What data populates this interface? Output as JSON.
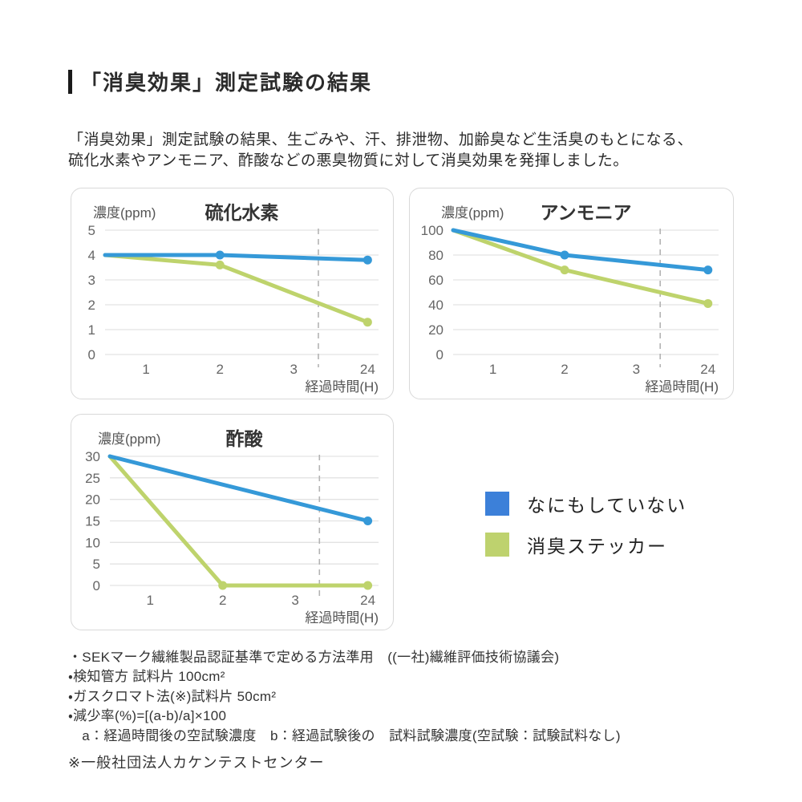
{
  "header": {
    "title": "「消臭効果」測定試験の結果",
    "description_line1": "「消臭効果」測定試験の結果、生ごみや、汗、排泄物、加齢臭など生活臭のもとになる、",
    "description_line2": "硫化水素やアンモニア、酢酸などの悪臭物質に対して消臭効果を発揮しました。"
  },
  "colors": {
    "line_blue": "#3599d8",
    "line_green": "#bed36c",
    "legend_blue": "#3c80d9",
    "legend_green": "#bed26e",
    "grid": "#e3e3e3",
    "dashed_guide": "#b3b3b3",
    "axis_text": "#666666",
    "label_text": "#555555",
    "title_text": "#333333"
  },
  "legend": {
    "items": [
      {
        "label": "なにもしていない",
        "color": "#3c80d9"
      },
      {
        "label": "消臭ステッカー",
        "color": "#bed26e"
      }
    ]
  },
  "chart_data": [
    {
      "type": "line",
      "title": "硫化水素",
      "unit_label": "濃度(ppm)",
      "xlabel": "経過時間(H)",
      "x_ticks": [
        "1",
        "2",
        "3",
        "24"
      ],
      "y_ticks": [
        0,
        1,
        2,
        3,
        4,
        5
      ],
      "ylim": [
        0,
        5
      ],
      "dashed_guide_x_frac": 0.78,
      "series": [
        {
          "name": "なにもしていない",
          "color": "#3599d8",
          "points": [
            {
              "t": "0",
              "v": 4.0,
              "dot": false
            },
            {
              "t": "2",
              "v": 4.0,
              "dot": true
            },
            {
              "t": "24",
              "v": 3.8,
              "dot": true
            }
          ]
        },
        {
          "name": "消臭ステッカー",
          "color": "#bed36c",
          "points": [
            {
              "t": "0",
              "v": 4.0,
              "dot": false
            },
            {
              "t": "2",
              "v": 3.6,
              "dot": true
            },
            {
              "t": "24",
              "v": 1.3,
              "dot": true
            }
          ]
        }
      ]
    },
    {
      "type": "line",
      "title": "アンモニア",
      "unit_label": "濃度(ppm)",
      "xlabel": "経過時間(H)",
      "x_ticks": [
        "1",
        "2",
        "3",
        "24"
      ],
      "y_ticks": [
        0,
        20,
        40,
        60,
        80,
        100
      ],
      "ylim": [
        0,
        100
      ],
      "dashed_guide_x_frac": 0.78,
      "series": [
        {
          "name": "なにもしていない",
          "color": "#3599d8",
          "points": [
            {
              "t": "0",
              "v": 100,
              "dot": false
            },
            {
              "t": "2",
              "v": 80,
              "dot": true
            },
            {
              "t": "24",
              "v": 68,
              "dot": true
            }
          ]
        },
        {
          "name": "消臭ステッカー",
          "color": "#bed36c",
          "points": [
            {
              "t": "0",
              "v": 100,
              "dot": false
            },
            {
              "t": "2",
              "v": 68,
              "dot": true
            },
            {
              "t": "24",
              "v": 41,
              "dot": true
            }
          ]
        }
      ]
    },
    {
      "type": "line",
      "title": "酢酸",
      "unit_label": "濃度(ppm)",
      "xlabel": "経過時間(H)",
      "x_ticks": [
        "1",
        "2",
        "3",
        "24"
      ],
      "y_ticks": [
        0,
        5,
        10,
        15,
        20,
        25,
        30
      ],
      "ylim": [
        0,
        30
      ],
      "dashed_guide_x_frac": 0.78,
      "series": [
        {
          "name": "なにもしていない",
          "color": "#3599d8",
          "points": [
            {
              "t": "0",
              "v": 30,
              "dot": false
            },
            {
              "t": "24",
              "v": 15,
              "dot": true
            }
          ]
        },
        {
          "name": "消臭ステッカー",
          "color": "#bed36c",
          "points": [
            {
              "t": "0",
              "v": 30,
              "dot": false
            },
            {
              "t": "2",
              "v": 0,
              "dot": true
            },
            {
              "t": "24",
              "v": 0,
              "dot": true
            }
          ]
        }
      ]
    }
  ],
  "notes": {
    "lines": [
      "・SEKマーク繊維製品認証基準で定める方法準用　((一社)繊維評価技術協議会)",
      "・検知管方 試料片 100cm²",
      "・ガスクロマト法(※)試料片 50cm²",
      "・減少率(%)=[(a-b)/a]×100",
      "　a：経過時間後の空試験濃度　b：経過試験後の　試料試験濃度(空試験：試験試料なし)"
    ],
    "source": "※一般社団法人カケンテストセンター"
  }
}
